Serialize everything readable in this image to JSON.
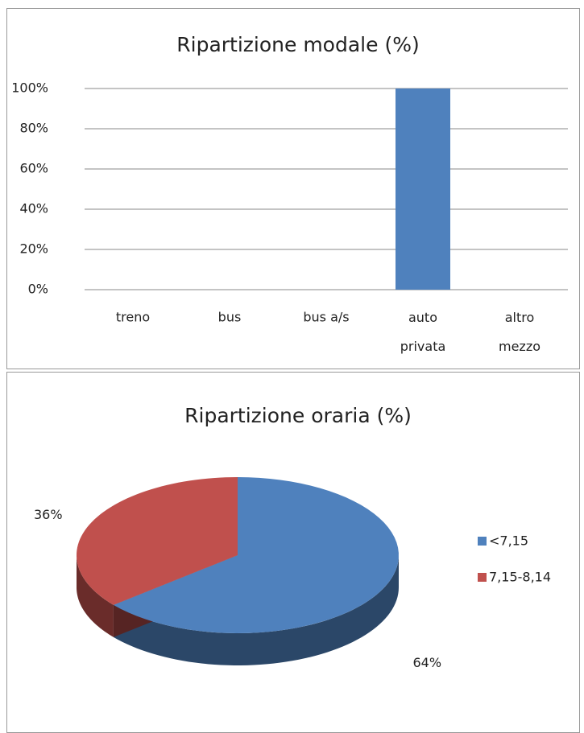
{
  "chart_data": [
    {
      "type": "bar",
      "title": "Ripartizione modale (%)",
      "categories": [
        "treno",
        "bus",
        "bus a/s",
        "auto privata",
        "altro mezzo"
      ],
      "values": [
        0,
        0,
        0,
        100,
        0
      ],
      "color": "#4f81bd",
      "ylim": [
        0,
        100
      ],
      "yticks": [
        {
          "value": 0,
          "label": "0%"
        },
        {
          "value": 20,
          "label": "20%"
        },
        {
          "value": 40,
          "label": "40%"
        },
        {
          "value": 60,
          "label": "60%"
        },
        {
          "value": 80,
          "label": "80%"
        },
        {
          "value": 100,
          "label": "100%"
        }
      ],
      "grid": true
    },
    {
      "type": "pie",
      "title": "Ripartizione oraria (%)",
      "series": [
        {
          "name": "<7,15",
          "color": "#4f81bd",
          "values": [
            64
          ],
          "value_labels": [
            "64%"
          ]
        },
        {
          "name": "7,15-8,14",
          "color": "#c0504d",
          "values": [
            36
          ],
          "value_labels": [
            "36%"
          ]
        }
      ],
      "legend": "right"
    }
  ]
}
